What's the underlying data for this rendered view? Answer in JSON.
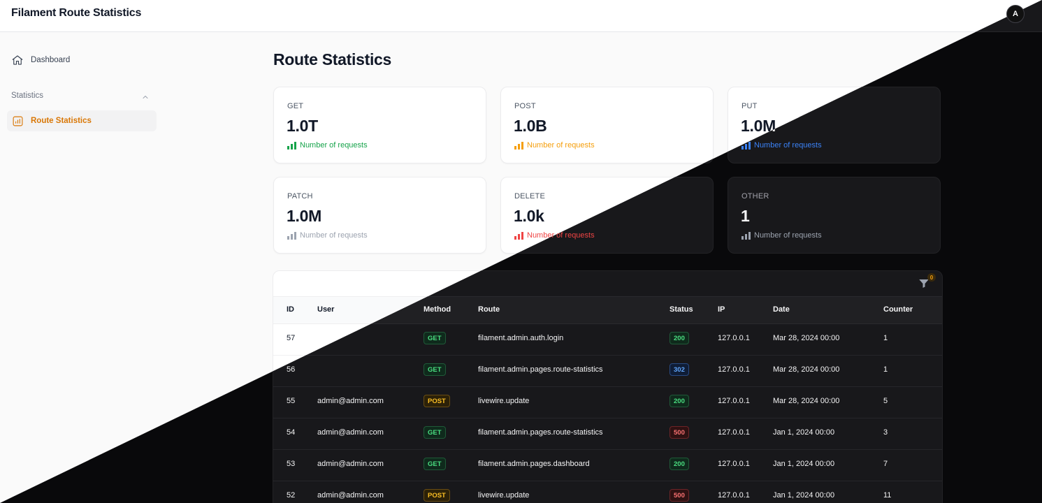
{
  "app": {
    "title": "Filament Route Statistics",
    "user_initial": "A"
  },
  "sidebar": {
    "dashboard_label": "Dashboard",
    "group_label": "Statistics",
    "active_item_label": "Route Statistics"
  },
  "page": {
    "title": "Route Statistics"
  },
  "stats": [
    {
      "label": "GET",
      "value": "1.0T",
      "description": "Number of requests",
      "color": "#16a34a"
    },
    {
      "label": "POST",
      "value": "1.0B",
      "description": "Number of requests",
      "color": "#f59e0b"
    },
    {
      "label": "PUT",
      "value": "1.0M",
      "description": "Number of requests",
      "color": "#3b82f6"
    },
    {
      "label": "PATCH",
      "value": "1.0M",
      "description": "Number of requests",
      "color": "#9ca3af"
    },
    {
      "label": "DELETE",
      "value": "1.0k",
      "description": "Number of requests",
      "color": "#ef4444"
    },
    {
      "label": "OTHER",
      "value": "1",
      "description": "Number of requests",
      "color": "#9ca3af"
    }
  ],
  "table": {
    "filter_count": "0",
    "columns": [
      "ID",
      "User",
      "Method",
      "Route",
      "Status",
      "IP",
      "Date",
      "Counter"
    ],
    "rows": [
      {
        "id": "57",
        "user": "",
        "method": "GET",
        "method_color": "green",
        "route": "filament.admin.auth.login",
        "status": "200",
        "status_color": "green",
        "ip": "127.0.0.1",
        "date": "Mar 28, 2024 00:00",
        "counter": "1"
      },
      {
        "id": "56",
        "user": "",
        "method": "GET",
        "method_color": "green",
        "route": "filament.admin.pages.route-statistics",
        "status": "302",
        "status_color": "blue",
        "ip": "127.0.0.1",
        "date": "Mar 28, 2024 00:00",
        "counter": "1"
      },
      {
        "id": "55",
        "user": "admin@admin.com",
        "method": "POST",
        "method_color": "amber",
        "route": "livewire.update",
        "status": "200",
        "status_color": "green",
        "ip": "127.0.0.1",
        "date": "Mar 28, 2024 00:00",
        "counter": "5"
      },
      {
        "id": "54",
        "user": "admin@admin.com",
        "method": "GET",
        "method_color": "green",
        "route": "filament.admin.pages.route-statistics",
        "status": "500",
        "status_color": "red",
        "ip": "127.0.0.1",
        "date": "Jan 1, 2024 00:00",
        "counter": "3"
      },
      {
        "id": "53",
        "user": "admin@admin.com",
        "method": "GET",
        "method_color": "green",
        "route": "filament.admin.pages.dashboard",
        "status": "200",
        "status_color": "green",
        "ip": "127.0.0.1",
        "date": "Jan 1, 2024 00:00",
        "counter": "7"
      },
      {
        "id": "52",
        "user": "admin@admin.com",
        "method": "POST",
        "method_color": "amber",
        "route": "livewire.update",
        "status": "500",
        "status_color": "red",
        "ip": "127.0.0.1",
        "date": "Jan 1, 2024 00:00",
        "counter": "11"
      }
    ]
  }
}
